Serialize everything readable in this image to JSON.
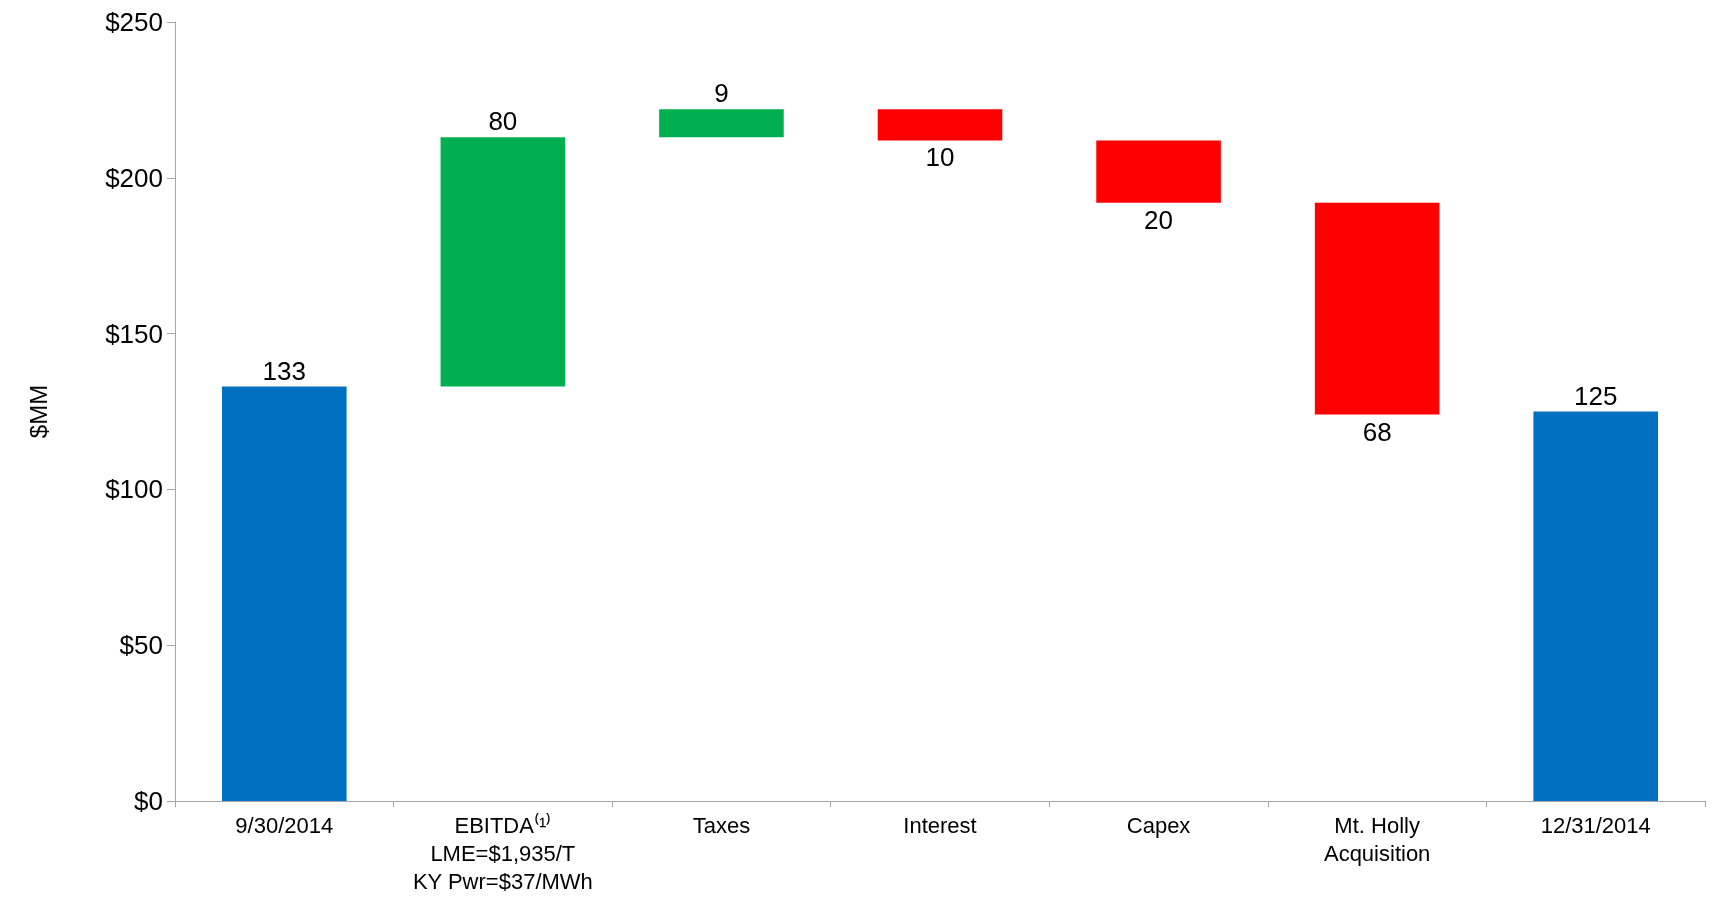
{
  "chart_data": {
    "type": "bar",
    "ylabel": "$MM",
    "categories": [
      "9/30/2014",
      "EBITDA⁽¹⁾\nLME=$1,935/T\nKY Pwr=$37/MWh",
      "Taxes",
      "Interest",
      "Capex",
      "Mt. Holly\nAcquisition",
      "12/31/2014"
    ],
    "values": [
      133,
      80,
      9,
      -10,
      -20,
      -68,
      125
    ],
    "base": [
      0,
      133,
      213,
      222,
      212,
      192,
      0
    ],
    "colors": [
      "#0070c0",
      "#00b050",
      "#00b050",
      "#ff0000",
      "#ff0000",
      "#ff0000",
      "#0070c0"
    ],
    "value_labels": [
      "133",
      "80",
      "9",
      "10",
      "20",
      "68",
      "125"
    ],
    "ylim": [
      0,
      250
    ],
    "yticks": [
      {
        "value": 0,
        "label": "$0"
      },
      {
        "value": 50,
        "label": "$50"
      },
      {
        "value": 100,
        "label": "$100"
      },
      {
        "value": 150,
        "label": "$150"
      },
      {
        "value": 200,
        "label": "$200"
      },
      {
        "value": 250,
        "label": "$250"
      }
    ],
    "grid": false
  }
}
